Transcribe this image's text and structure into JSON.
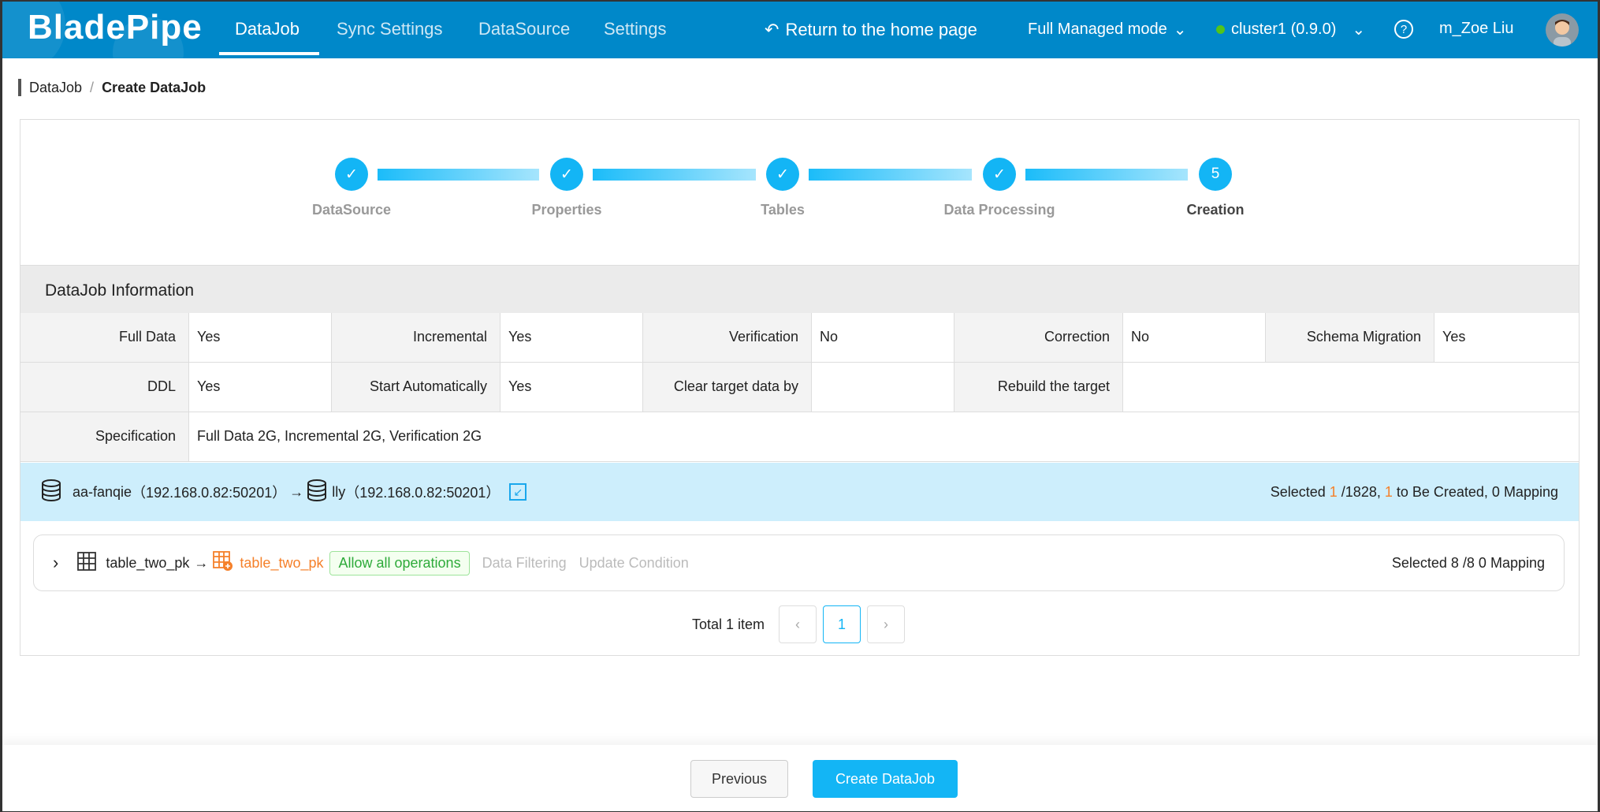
{
  "header": {
    "logo": "BladePipe",
    "nav": [
      "DataJob",
      "Sync Settings",
      "DataSource",
      "Settings"
    ],
    "return_label": "Return to the home page",
    "mode": "Full Managed mode",
    "cluster": "cluster1 (0.9.0)",
    "user": "m_Zoe Liu",
    "status_color": "#52c41a"
  },
  "breadcrumb": {
    "parent": "DataJob",
    "sep": "/",
    "current": "Create DataJob"
  },
  "steps": [
    {
      "label": "DataSource",
      "mark": "✓"
    },
    {
      "label": "Properties",
      "mark": "✓"
    },
    {
      "label": "Tables",
      "mark": "✓"
    },
    {
      "label": "Data Processing",
      "mark": "✓"
    },
    {
      "label": "Creation",
      "mark": "5"
    }
  ],
  "info": {
    "title": "DataJob Information",
    "rows": [
      [
        [
          "Full Data",
          "Yes"
        ],
        [
          "Incremental",
          "Yes"
        ],
        [
          "Verification",
          "No"
        ],
        [
          "Correction",
          "No"
        ],
        [
          "Schema Migration",
          "Yes"
        ]
      ],
      [
        [
          "DDL",
          "Yes"
        ],
        [
          "Start Automatically",
          "Yes"
        ],
        [
          "Clear target data by",
          ""
        ],
        [
          "Rebuild the target",
          ""
        ]
      ],
      [
        [
          "Specification",
          "Full Data 2G, Incremental 2G, Verification 2G"
        ]
      ]
    ]
  },
  "mapping": {
    "source": "aa-fanqie",
    "source_addr": "（192.168.0.82:50201）",
    "arrow": "→",
    "target": "lly",
    "target_addr": "（192.168.0.82:50201）",
    "sel_prefix": "Selected ",
    "sel_count": "1",
    "sel_total": " /1828, ",
    "create_count": "1",
    "sel_suffix": " to Be Created, 0 Mapping"
  },
  "table_row": {
    "source_table": "table_two_pk",
    "arrow": "→",
    "target_table": "table_two_pk",
    "tag": "Allow all operations",
    "filter": "Data Filtering",
    "update": "Update Condition",
    "summary": "Selected 8 /8 0 Mapping"
  },
  "pagination": {
    "total": "Total 1 item",
    "prev": "‹",
    "page": "1",
    "next": "›"
  },
  "footer": {
    "previous": "Previous",
    "create": "Create DataJob"
  }
}
